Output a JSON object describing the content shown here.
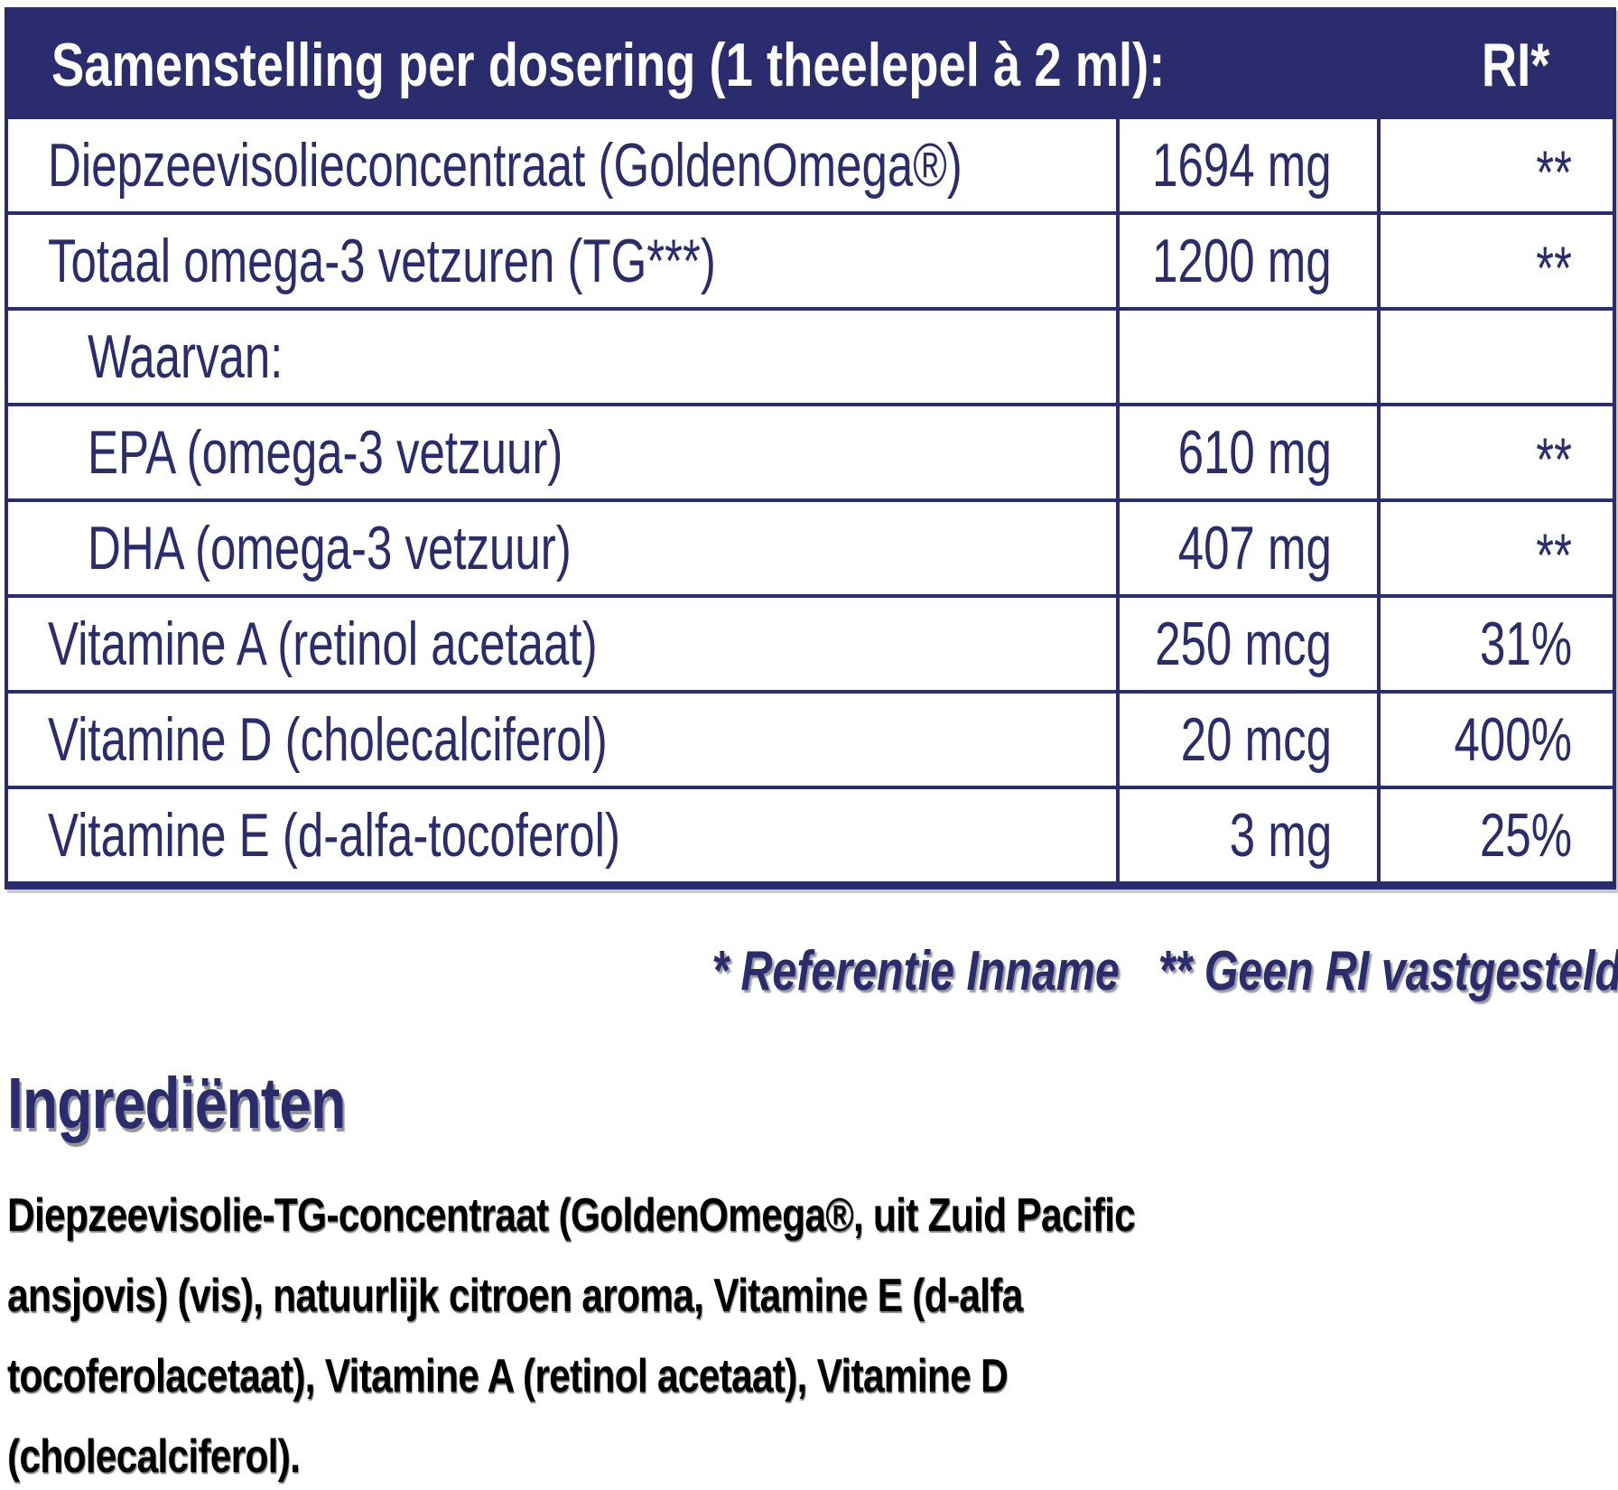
{
  "colors": {
    "navy": "#2b2c6e",
    "background": "#ffffff",
    "body_text": "#000000"
  },
  "table": {
    "title": "Samenstelling per dosering (1 theelepel à 2 ml):",
    "ri_header": "RI*",
    "rows": [
      {
        "label": "Diepzeevisolieconcentraat (GoldenOmega®)",
        "indent": false,
        "amount": "1694 mg",
        "ri": "**"
      },
      {
        "label": "Totaal omega-3 vetzuren (TG***)",
        "indent": false,
        "amount": "1200 mg",
        "ri": "**"
      },
      {
        "label": "Waarvan:",
        "indent": true,
        "amount": "",
        "ri": ""
      },
      {
        "label": "EPA (omega-3 vetzuur)",
        "indent": true,
        "amount": "610 mg",
        "ri": "**"
      },
      {
        "label": "DHA (omega-3 vetzuur)",
        "indent": true,
        "amount": "407 mg",
        "ri": "**"
      },
      {
        "label": "Vitamine A (retinol acetaat)",
        "indent": false,
        "amount": "250 mcg",
        "ri": "31%"
      },
      {
        "label": "Vitamine D (cholecalciferol)",
        "indent": false,
        "amount": "20 mcg",
        "ri": "400%"
      },
      {
        "label": "Vitamine E (d-alfa-tocoferol)",
        "indent": false,
        "amount": "3 mg",
        "ri": "25%"
      }
    ]
  },
  "footnote": {
    "reference": "* Referentie Inname",
    "no_ri": "** Geen RI vastgesteld"
  },
  "ingredients": {
    "heading": "Ingrediënten",
    "lines": [
      "Diepzeevisolie-TG-concentraat (GoldenOmega®, uit Zuid Pacific",
      "ansjovis) (vis), natuurlijk citroen aroma, Vitamine E (d-alfa",
      "tocoferolacetaat), Vitamine A (retinol acetaat), Vitamine D",
      "(cholecalciferol)."
    ]
  }
}
